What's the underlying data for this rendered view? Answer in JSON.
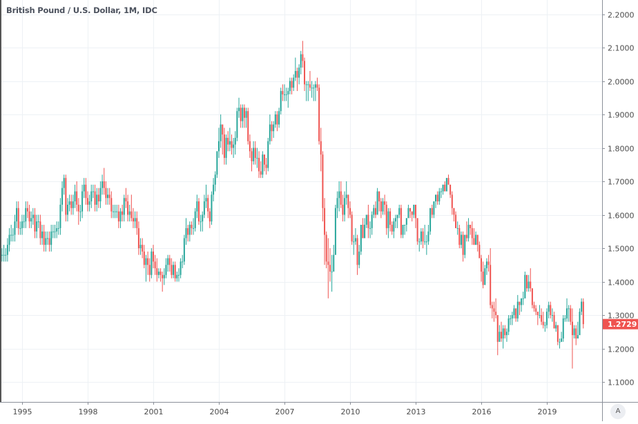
{
  "header": {
    "title": "British Pound / U.S. Dollar, 1M, IDC"
  },
  "price_axis": {
    "ticks": [
      "2.2000",
      "2.1000",
      "2.0000",
      "1.9000",
      "1.8000",
      "1.7000",
      "1.6000",
      "1.5000",
      "1.4000",
      "1.3000",
      "1.2000",
      "1.1000"
    ],
    "last_price_label": "1.2729",
    "auto_scale_label": "A"
  },
  "time_axis": {
    "ticks": [
      "1995",
      "1998",
      "2001",
      "2004",
      "2007",
      "2010",
      "2013",
      "2016",
      "2019"
    ]
  },
  "colors": {
    "up": "#26a69a",
    "down": "#ef5350",
    "grid": "#edf1f5",
    "last_price": "#ef5350"
  },
  "chart_data": {
    "type": "candlestick",
    "title": "British Pound / U.S. Dollar, 1M, IDC",
    "interval": "1M",
    "start": "1994-01",
    "end": "2020-09",
    "ylim": [
      1.1,
      2.2
    ],
    "grid": true,
    "first_open": 1.49,
    "close": [
      1.48,
      1.48,
      1.48,
      1.48,
      1.51,
      1.54,
      1.54,
      1.54,
      1.58,
      1.62,
      1.56,
      1.56,
      1.58,
      1.58,
      1.62,
      1.61,
      1.58,
      1.59,
      1.6,
      1.55,
      1.58,
      1.58,
      1.53,
      1.55,
      1.51,
      1.53,
      1.53,
      1.51,
      1.55,
      1.55,
      1.55,
      1.56,
      1.56,
      1.63,
      1.68,
      1.71,
      1.6,
      1.63,
      1.64,
      1.62,
      1.64,
      1.67,
      1.63,
      1.61,
      1.61,
      1.67,
      1.69,
      1.65,
      1.63,
      1.64,
      1.67,
      1.67,
      1.63,
      1.66,
      1.64,
      1.68,
      1.7,
      1.68,
      1.65,
      1.66,
      1.65,
      1.61,
      1.61,
      1.61,
      1.61,
      1.58,
      1.61,
      1.6,
      1.65,
      1.64,
      1.6,
      1.61,
      1.59,
      1.58,
      1.59,
      1.56,
      1.5,
      1.51,
      1.49,
      1.45,
      1.47,
      1.45,
      1.42,
      1.49,
      1.46,
      1.44,
      1.42,
      1.43,
      1.42,
      1.41,
      1.42,
      1.45,
      1.47,
      1.45,
      1.42,
      1.45,
      1.41,
      1.42,
      1.42,
      1.46,
      1.46,
      1.53,
      1.56,
      1.54,
      1.57,
      1.56,
      1.56,
      1.61,
      1.64,
      1.58,
      1.58,
      1.6,
      1.64,
      1.65,
      1.61,
      1.58,
      1.66,
      1.69,
      1.72,
      1.79,
      1.82,
      1.87,
      1.84,
      1.77,
      1.83,
      1.81,
      1.82,
      1.8,
      1.81,
      1.83,
      1.91,
      1.92,
      1.88,
      1.92,
      1.89,
      1.91,
      1.82,
      1.79,
      1.76,
      1.8,
      1.77,
      1.77,
      1.73,
      1.72,
      1.78,
      1.75,
      1.74,
      1.82,
      1.87,
      1.85,
      1.87,
      1.9,
      1.87,
      1.91,
      1.97,
      1.96,
      1.96,
      1.96,
      1.97,
      2.0,
      1.98,
      2.01,
      2.03,
      2.01,
      2.04,
      2.08,
      2.06,
      1.99,
      1.99,
      1.99,
      1.98,
      1.98,
      1.98,
      1.99,
      1.98,
      1.82,
      1.78,
      1.62,
      1.54,
      1.46,
      1.45,
      1.43,
      1.43,
      1.48,
      1.62,
      1.65,
      1.67,
      1.63,
      1.6,
      1.65,
      1.66,
      1.62,
      1.6,
      1.52,
      1.52,
      1.53,
      1.45,
      1.49,
      1.57,
      1.53,
      1.57,
      1.6,
      1.56,
      1.56,
      1.6,
      1.62,
      1.6,
      1.67,
      1.64,
      1.61,
      1.64,
      1.63,
      1.56,
      1.61,
      1.57,
      1.55,
      1.58,
      1.59,
      1.6,
      1.62,
      1.54,
      1.57,
      1.57,
      1.59,
      1.62,
      1.61,
      1.6,
      1.63,
      1.59,
      1.52,
      1.52,
      1.55,
      1.52,
      1.52,
      1.52,
      1.55,
      1.62,
      1.6,
      1.64,
      1.66,
      1.64,
      1.67,
      1.67,
      1.69,
      1.67,
      1.71,
      1.69,
      1.66,
      1.62,
      1.6,
      1.56,
      1.56,
      1.51,
      1.54,
      1.48,
      1.54,
      1.53,
      1.57,
      1.56,
      1.53,
      1.51,
      1.54,
      1.51,
      1.47,
      1.43,
      1.39,
      1.44,
      1.46,
      1.45,
      1.33,
      1.32,
      1.31,
      1.3,
      1.22,
      1.25,
      1.23,
      1.26,
      1.24,
      1.25,
      1.29,
      1.29,
      1.3,
      1.32,
      1.29,
      1.34,
      1.33,
      1.35,
      1.35,
      1.42,
      1.38,
      1.4,
      1.38,
      1.33,
      1.32,
      1.31,
      1.3,
      1.3,
      1.28,
      1.27,
      1.27,
      1.31,
      1.33,
      1.3,
      1.3,
      1.26,
      1.27,
      1.22,
      1.22,
      1.23,
      1.29,
      1.29,
      1.32,
      1.32,
      1.28,
      1.24,
      1.26,
      1.23,
      1.24,
      1.31,
      1.34,
      1.2729
    ],
    "high": [
      1.51,
      1.5,
      1.51,
      1.5,
      1.53,
      1.56,
      1.57,
      1.56,
      1.6,
      1.64,
      1.64,
      1.58,
      1.6,
      1.6,
      1.64,
      1.64,
      1.63,
      1.61,
      1.62,
      1.62,
      1.6,
      1.6,
      1.6,
      1.57,
      1.57,
      1.55,
      1.55,
      1.55,
      1.57,
      1.57,
      1.57,
      1.58,
      1.58,
      1.65,
      1.7,
      1.72,
      1.72,
      1.65,
      1.66,
      1.66,
      1.66,
      1.69,
      1.7,
      1.65,
      1.63,
      1.69,
      1.71,
      1.71,
      1.67,
      1.66,
      1.69,
      1.69,
      1.69,
      1.68,
      1.68,
      1.7,
      1.72,
      1.74,
      1.7,
      1.68,
      1.68,
      1.67,
      1.63,
      1.63,
      1.63,
      1.63,
      1.62,
      1.63,
      1.66,
      1.68,
      1.66,
      1.63,
      1.66,
      1.62,
      1.61,
      1.61,
      1.58,
      1.53,
      1.53,
      1.51,
      1.48,
      1.49,
      1.47,
      1.5,
      1.51,
      1.48,
      1.47,
      1.44,
      1.44,
      1.43,
      1.44,
      1.47,
      1.48,
      1.48,
      1.47,
      1.46,
      1.46,
      1.43,
      1.44,
      1.47,
      1.48,
      1.54,
      1.59,
      1.57,
      1.58,
      1.58,
      1.59,
      1.62,
      1.66,
      1.65,
      1.6,
      1.61,
      1.66,
      1.69,
      1.66,
      1.62,
      1.67,
      1.71,
      1.73,
      1.79,
      1.86,
      1.9,
      1.87,
      1.86,
      1.84,
      1.85,
      1.86,
      1.84,
      1.83,
      1.85,
      1.92,
      1.95,
      1.93,
      1.93,
      1.93,
      1.92,
      1.92,
      1.84,
      1.8,
      1.82,
      1.82,
      1.8,
      1.79,
      1.76,
      1.79,
      1.78,
      1.77,
      1.83,
      1.9,
      1.88,
      1.88,
      1.91,
      1.91,
      1.92,
      1.98,
      1.99,
      1.99,
      1.98,
      1.98,
      2.01,
      2.01,
      2.02,
      2.07,
      2.04,
      2.05,
      2.09,
      2.12,
      2.07,
      2.0,
      2.0,
      2.03,
      2.0,
      1.99,
      2.0,
      2.01,
      1.99,
      1.86,
      1.79,
      1.65,
      1.55,
      1.53,
      1.5,
      1.48,
      1.51,
      1.63,
      1.67,
      1.7,
      1.7,
      1.66,
      1.67,
      1.7,
      1.66,
      1.64,
      1.61,
      1.54,
      1.56,
      1.54,
      1.51,
      1.57,
      1.59,
      1.59,
      1.6,
      1.63,
      1.58,
      1.61,
      1.63,
      1.64,
      1.68,
      1.67,
      1.65,
      1.65,
      1.66,
      1.64,
      1.62,
      1.62,
      1.58,
      1.59,
      1.6,
      1.6,
      1.63,
      1.63,
      1.57,
      1.57,
      1.59,
      1.63,
      1.62,
      1.61,
      1.63,
      1.63,
      1.59,
      1.53,
      1.56,
      1.56,
      1.57,
      1.54,
      1.57,
      1.62,
      1.63,
      1.64,
      1.66,
      1.67,
      1.68,
      1.68,
      1.69,
      1.7,
      1.71,
      1.72,
      1.69,
      1.67,
      1.62,
      1.61,
      1.58,
      1.57,
      1.55,
      1.55,
      1.54,
      1.58,
      1.59,
      1.57,
      1.58,
      1.56,
      1.55,
      1.54,
      1.52,
      1.48,
      1.46,
      1.45,
      1.47,
      1.48,
      1.5,
      1.34,
      1.34,
      1.35,
      1.3,
      1.27,
      1.28,
      1.27,
      1.27,
      1.26,
      1.3,
      1.3,
      1.31,
      1.33,
      1.32,
      1.36,
      1.34,
      1.35,
      1.37,
      1.43,
      1.42,
      1.42,
      1.44,
      1.38,
      1.34,
      1.33,
      1.31,
      1.33,
      1.32,
      1.31,
      1.28,
      1.32,
      1.34,
      1.34,
      1.32,
      1.31,
      1.28,
      1.27,
      1.23,
      1.25,
      1.3,
      1.3,
      1.35,
      1.33,
      1.33,
      1.32,
      1.27,
      1.27,
      1.28,
      1.32,
      1.35,
      1.35
    ],
    "low": [
      1.46,
      1.46,
      1.46,
      1.46,
      1.46,
      1.49,
      1.52,
      1.52,
      1.52,
      1.56,
      1.54,
      1.54,
      1.54,
      1.56,
      1.56,
      1.59,
      1.56,
      1.56,
      1.57,
      1.53,
      1.53,
      1.56,
      1.51,
      1.51,
      1.49,
      1.49,
      1.51,
      1.49,
      1.49,
      1.53,
      1.53,
      1.53,
      1.54,
      1.54,
      1.61,
      1.66,
      1.58,
      1.58,
      1.61,
      1.6,
      1.6,
      1.62,
      1.61,
      1.57,
      1.58,
      1.59,
      1.65,
      1.63,
      1.61,
      1.61,
      1.62,
      1.65,
      1.61,
      1.61,
      1.62,
      1.62,
      1.66,
      1.66,
      1.63,
      1.63,
      1.63,
      1.59,
      1.59,
      1.59,
      1.59,
      1.56,
      1.56,
      1.58,
      1.58,
      1.62,
      1.58,
      1.58,
      1.58,
      1.56,
      1.56,
      1.54,
      1.48,
      1.48,
      1.47,
      1.44,
      1.4,
      1.42,
      1.4,
      1.41,
      1.44,
      1.42,
      1.4,
      1.41,
      1.4,
      1.37,
      1.39,
      1.41,
      1.43,
      1.43,
      1.41,
      1.41,
      1.4,
      1.4,
      1.4,
      1.41,
      1.44,
      1.45,
      1.51,
      1.52,
      1.52,
      1.54,
      1.54,
      1.55,
      1.59,
      1.57,
      1.55,
      1.55,
      1.59,
      1.62,
      1.59,
      1.56,
      1.57,
      1.64,
      1.67,
      1.71,
      1.77,
      1.8,
      1.78,
      1.75,
      1.75,
      1.79,
      1.79,
      1.78,
      1.77,
      1.78,
      1.82,
      1.89,
      1.86,
      1.86,
      1.86,
      1.86,
      1.81,
      1.77,
      1.73,
      1.75,
      1.75,
      1.74,
      1.71,
      1.71,
      1.71,
      1.73,
      1.72,
      1.73,
      1.81,
      1.82,
      1.83,
      1.86,
      1.85,
      1.86,
      1.9,
      1.94,
      1.94,
      1.94,
      1.92,
      1.96,
      1.96,
      1.97,
      2.0,
      1.97,
      1.99,
      2.02,
      2.04,
      1.97,
      1.94,
      1.94,
      1.97,
      1.95,
      1.94,
      1.94,
      1.97,
      1.81,
      1.73,
      1.58,
      1.45,
      1.44,
      1.35,
      1.4,
      1.37,
      1.43,
      1.48,
      1.59,
      1.61,
      1.62,
      1.58,
      1.58,
      1.63,
      1.59,
      1.59,
      1.51,
      1.48,
      1.51,
      1.42,
      1.44,
      1.48,
      1.53,
      1.53,
      1.56,
      1.53,
      1.53,
      1.54,
      1.59,
      1.59,
      1.6,
      1.61,
      1.59,
      1.6,
      1.6,
      1.54,
      1.53,
      1.55,
      1.54,
      1.53,
      1.56,
      1.56,
      1.59,
      1.53,
      1.53,
      1.54,
      1.55,
      1.59,
      1.59,
      1.58,
      1.59,
      1.56,
      1.51,
      1.49,
      1.51,
      1.5,
      1.51,
      1.48,
      1.51,
      1.54,
      1.59,
      1.59,
      1.62,
      1.63,
      1.63,
      1.65,
      1.66,
      1.67,
      1.67,
      1.69,
      1.65,
      1.6,
      1.58,
      1.56,
      1.54,
      1.5,
      1.5,
      1.46,
      1.47,
      1.52,
      1.52,
      1.54,
      1.51,
      1.51,
      1.51,
      1.49,
      1.47,
      1.4,
      1.38,
      1.39,
      1.42,
      1.43,
      1.32,
      1.29,
      1.28,
      1.29,
      1.18,
      1.22,
      1.22,
      1.2,
      1.23,
      1.22,
      1.24,
      1.27,
      1.27,
      1.29,
      1.28,
      1.28,
      1.3,
      1.31,
      1.33,
      1.35,
      1.37,
      1.37,
      1.37,
      1.32,
      1.31,
      1.3,
      1.27,
      1.29,
      1.27,
      1.26,
      1.25,
      1.26,
      1.29,
      1.29,
      1.28,
      1.26,
      1.25,
      1.21,
      1.2,
      1.22,
      1.22,
      1.28,
      1.28,
      1.28,
      1.27,
      1.14,
      1.23,
      1.21,
      1.23,
      1.24,
      1.3,
      1.26
    ]
  }
}
